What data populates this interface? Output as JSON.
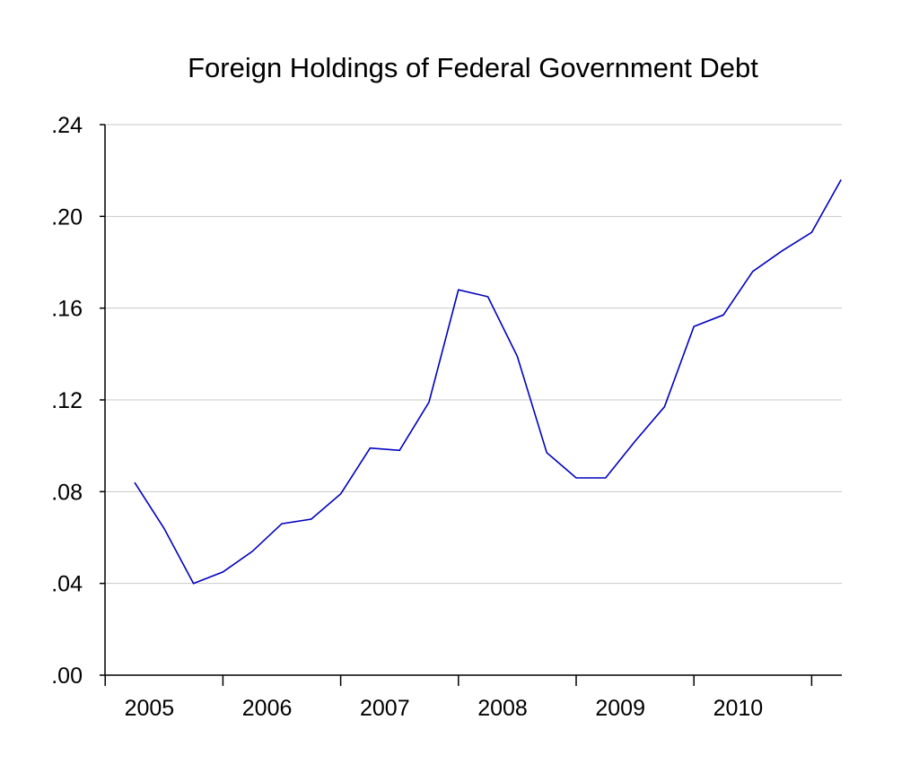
{
  "chart_data": {
    "type": "line",
    "title": "Foreign Holdings of Federal Government Debt",
    "xlabel": "",
    "ylabel": "",
    "ylim": [
      0,
      0.24
    ],
    "ytick_values": [
      0,
      0.04,
      0.08,
      0.12,
      0.16,
      0.2,
      0.24
    ],
    "ytick_labels": [
      ".00",
      ".04",
      ".08",
      ".12",
      ".16",
      ".20",
      ".24"
    ],
    "xtick_labels": [
      "2005",
      "2006",
      "2007",
      "2008",
      "2009",
      "2010"
    ],
    "grid": "horizontal",
    "line_color": "#0000c0",
    "x": [
      "2005Q1",
      "2005Q2",
      "2005Q3",
      "2005Q4",
      "2006Q1",
      "2006Q2",
      "2006Q3",
      "2006Q4",
      "2007Q1",
      "2007Q2",
      "2007Q3",
      "2007Q4",
      "2008Q1",
      "2008Q2",
      "2008Q3",
      "2008Q4",
      "2009Q1",
      "2009Q2",
      "2009Q3",
      "2009Q4",
      "2010Q1",
      "2010Q2",
      "2010Q3",
      "2010Q4",
      "2011Q1"
    ],
    "series": [
      {
        "values": [
          0.084,
          0.064,
          0.04,
          0.045,
          0.054,
          0.066,
          0.068,
          0.079,
          0.099,
          0.098,
          0.119,
          0.168,
          0.165,
          0.139,
          0.097,
          0.086,
          0.086,
          0.102,
          0.117,
          0.152,
          0.157,
          0.176,
          0.185,
          0.193,
          0.216
        ]
      }
    ]
  }
}
